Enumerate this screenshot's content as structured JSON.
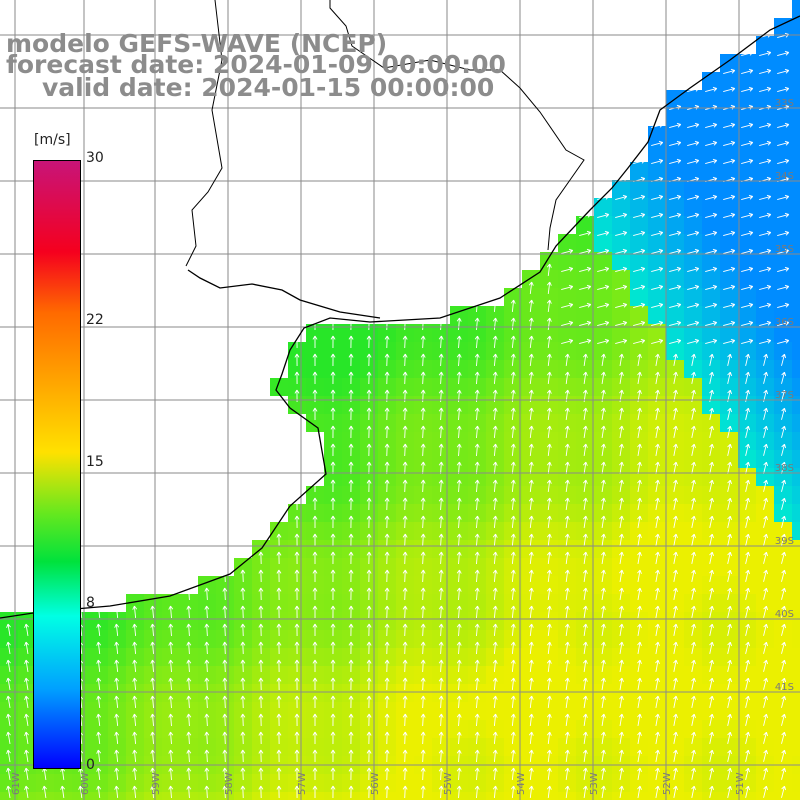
{
  "title": {
    "model": "modelo GEFS-WAVE (NCEP)",
    "forecast": "forecast date: 2024-01-09 00:00:00",
    "valid": "valid date: 2024-01-15 00:00:00"
  },
  "colorbar": {
    "unit": "[m/s]",
    "ticks": [
      "30",
      "22",
      "15",
      "8",
      "0"
    ],
    "tick_values": [
      30,
      22,
      15,
      8,
      0
    ],
    "colors": [
      "#c81478",
      "#f5001e",
      "#ff6a00",
      "#ffe100",
      "#00e23c",
      "#00ffe4",
      "#00a0ff",
      "#0000ff"
    ]
  },
  "map": {
    "lat_labels": [
      "33S",
      "34S",
      "35S",
      "36S",
      "37S",
      "38S",
      "39S",
      "40S",
      "41S"
    ],
    "lon_labels": [
      "61W",
      "60W",
      "59W",
      "58W",
      "57W",
      "56W",
      "55W",
      "54W",
      "53W",
      "52W",
      "51W"
    ],
    "land_color": "#ffffff",
    "grid_color": "#8a8a8a",
    "coast_color": "#000000",
    "arrow_color": "#ffffff"
  }
}
